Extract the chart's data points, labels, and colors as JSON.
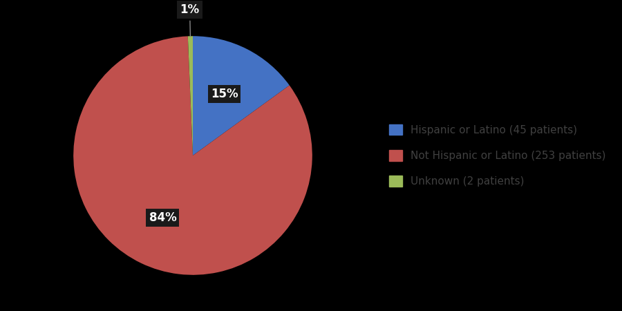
{
  "labels": [
    "Hispanic or Latino (45 patients)",
    "Not Hispanic or Latino (253 patients)",
    "Unknown (2 patients)"
  ],
  "values": [
    45,
    253,
    2
  ],
  "percentages": [
    "15%",
    "84%",
    "1%"
  ],
  "colors": [
    "#4472C4",
    "#C0504D",
    "#9BBB59"
  ],
  "background_color": "#000000",
  "legend_bg": "#E0E0E0",
  "legend_text_color": "#404040",
  "startangle": 90,
  "label_fontsize": 12,
  "legend_fontsize": 11
}
